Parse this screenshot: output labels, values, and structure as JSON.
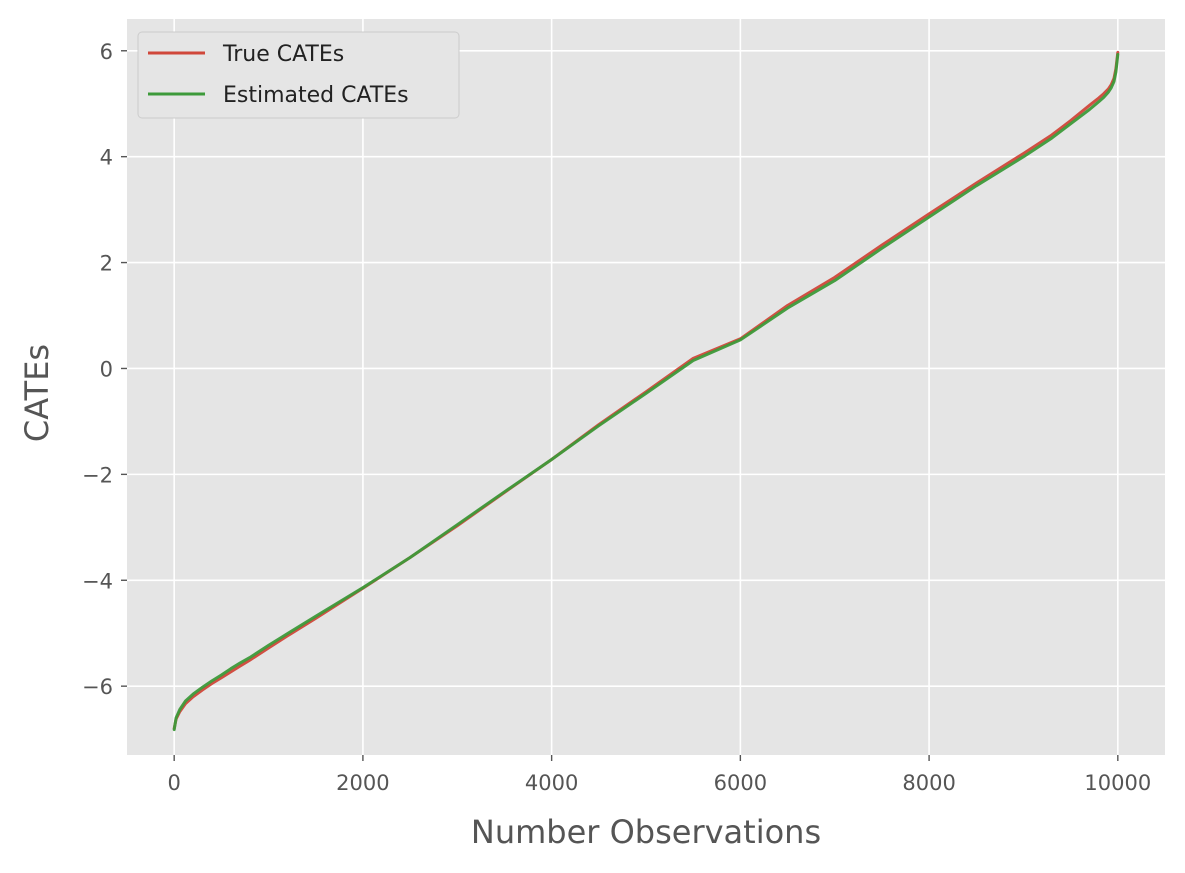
{
  "chart_data": {
    "type": "line",
    "title": "",
    "xlabel": "Number Observations",
    "ylabel": "CATEs",
    "xlim": [
      -500,
      10500
    ],
    "ylim": [
      -7.3,
      6.6
    ],
    "x_ticks": [
      0,
      2000,
      4000,
      6000,
      8000,
      10000
    ],
    "x_tick_labels": [
      "0",
      "2000",
      "4000",
      "6000",
      "8000",
      "10000"
    ],
    "y_ticks": [
      -6,
      -4,
      -2,
      0,
      2,
      4,
      6
    ],
    "y_tick_labels": [
      "−6",
      "−4",
      "−2",
      "0",
      "2",
      "4",
      "6"
    ],
    "grid": true,
    "legend_position": "top-left",
    "series": [
      {
        "name": "True CATEs",
        "color": "#d0473a",
        "x": [
          0,
          20,
          60,
          120,
          200,
          300,
          400,
          500,
          600,
          700,
          800,
          1000,
          1200,
          1500,
          2000,
          2500,
          3000,
          3500,
          4000,
          4500,
          5000,
          5500,
          6000,
          6500,
          7000,
          7500,
          8000,
          8500,
          9000,
          9300,
          9500,
          9700,
          9800,
          9850,
          9900,
          9930,
          9960,
          9980,
          10000
        ],
        "y": [
          -6.8,
          -6.62,
          -6.48,
          -6.33,
          -6.2,
          -6.07,
          -5.95,
          -5.84,
          -5.73,
          -5.62,
          -5.51,
          -5.28,
          -5.05,
          -4.72,
          -4.15,
          -3.57,
          -2.97,
          -2.34,
          -1.72,
          -1.06,
          -0.44,
          0.19,
          0.56,
          1.19,
          1.72,
          2.33,
          2.92,
          3.5,
          4.06,
          4.41,
          4.68,
          4.97,
          5.11,
          5.19,
          5.28,
          5.36,
          5.48,
          5.66,
          5.97
        ]
      },
      {
        "name": "Estimated CATEs",
        "color": "#3d9a3a",
        "x": [
          0,
          20,
          60,
          120,
          200,
          300,
          400,
          500,
          600,
          700,
          800,
          1000,
          1200,
          1500,
          2000,
          2500,
          3000,
          3500,
          4000,
          4500,
          5000,
          5500,
          6000,
          6500,
          7000,
          7500,
          8000,
          8500,
          9000,
          9300,
          9500,
          9700,
          9800,
          9850,
          9900,
          9930,
          9960,
          9980,
          10000
        ],
        "y": [
          -6.82,
          -6.6,
          -6.44,
          -6.28,
          -6.15,
          -6.02,
          -5.9,
          -5.79,
          -5.67,
          -5.56,
          -5.46,
          -5.23,
          -5.01,
          -4.68,
          -4.14,
          -3.57,
          -2.95,
          -2.33,
          -1.72,
          -1.08,
          -0.47,
          0.15,
          0.54,
          1.14,
          1.66,
          2.27,
          2.86,
          3.45,
          4.0,
          4.35,
          4.62,
          4.89,
          5.04,
          5.12,
          5.22,
          5.3,
          5.42,
          5.6,
          5.93
        ]
      }
    ]
  }
}
